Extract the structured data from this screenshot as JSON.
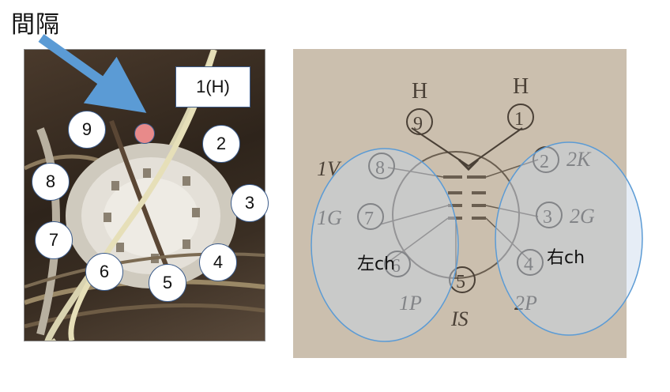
{
  "title": "間隔",
  "photo": {
    "label": "1(H)",
    "pins": [
      "9",
      "2",
      "8",
      "3",
      "7",
      "4",
      "6",
      "5"
    ]
  },
  "scan": {
    "left_label": "左ch",
    "right_label": "右ch",
    "pin_marks": [
      "H",
      "H",
      "9",
      "1",
      "8",
      "2",
      "7",
      "3",
      "6",
      "4",
      "5"
    ],
    "pin_texts": [
      "1V",
      "2K",
      "1G",
      "2G",
      "1P",
      "2P",
      "IS"
    ]
  },
  "colors": {
    "arrow": "#5b9bd5",
    "ellipse": "#5b9bd5",
    "red_dot": "#e88a8a"
  }
}
